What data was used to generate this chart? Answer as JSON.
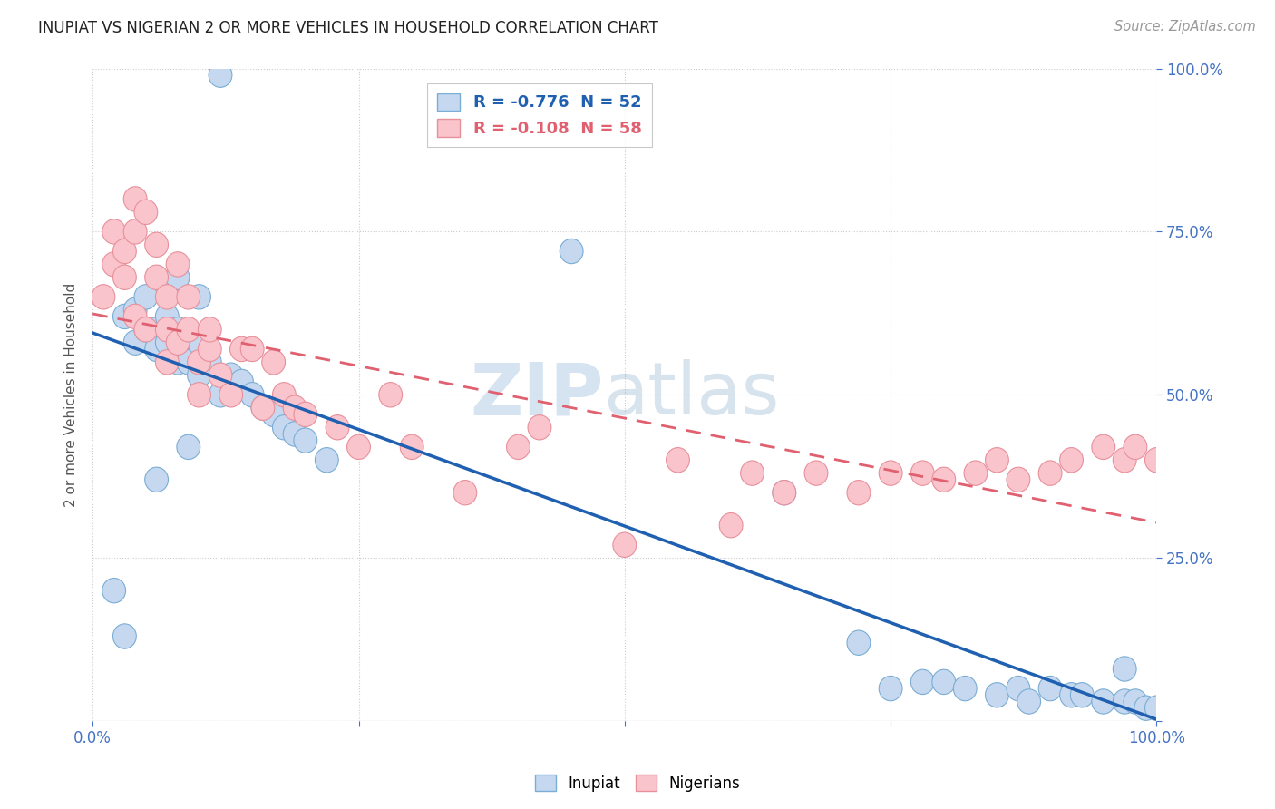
{
  "title": "INUPIAT VS NIGERIAN 2 OR MORE VEHICLES IN HOUSEHOLD CORRELATION CHART",
  "source": "Source: ZipAtlas.com",
  "ylabel": "2 or more Vehicles in Household",
  "watermark_zip": "ZIP",
  "watermark_atlas": "atlas",
  "legend_entry1": "R = -0.776  N = 52",
  "legend_entry2": "R = -0.108  N = 58",
  "inupiat_face_color": "#c5d8f0",
  "inupiat_edge_color": "#7aadd4",
  "nigerian_face_color": "#f9c4cc",
  "nigerian_edge_color": "#e8909a",
  "inupiat_line_color": "#2060b0",
  "nigerian_line_color": "#e06070",
  "xlim": [
    0,
    1
  ],
  "ylim": [
    0,
    1
  ],
  "xticks": [
    0.0,
    0.25,
    0.5,
    0.75,
    1.0
  ],
  "yticks": [
    0.0,
    0.25,
    0.5,
    0.75,
    1.0
  ],
  "xticklabels": [
    "0.0%",
    "",
    "",
    "",
    "100.0%"
  ],
  "yticklabels_right": [
    "",
    "25.0%",
    "50.0%",
    "75.0%",
    "100.0%"
  ],
  "inupiat_x": [
    0.02,
    0.03,
    0.04,
    0.04,
    0.05,
    0.05,
    0.06,
    0.06,
    0.07,
    0.07,
    0.08,
    0.08,
    0.08,
    0.09,
    0.09,
    0.1,
    0.1,
    0.1,
    0.11,
    0.12,
    0.12,
    0.13,
    0.14,
    0.15,
    0.16,
    0.17,
    0.18,
    0.19,
    0.2,
    0.22,
    0.03,
    0.06,
    0.09,
    0.45,
    0.65,
    0.72,
    0.75,
    0.78,
    0.8,
    0.82,
    0.85,
    0.87,
    0.88,
    0.9,
    0.92,
    0.93,
    0.95,
    0.97,
    0.97,
    0.98,
    0.99,
    1.0
  ],
  "inupiat_y": [
    0.2,
    0.62,
    0.63,
    0.58,
    0.65,
    0.6,
    0.6,
    0.57,
    0.62,
    0.58,
    0.6,
    0.55,
    0.68,
    0.57,
    0.55,
    0.58,
    0.53,
    0.65,
    0.55,
    0.5,
    0.99,
    0.53,
    0.52,
    0.5,
    0.48,
    0.47,
    0.45,
    0.44,
    0.43,
    0.4,
    0.13,
    0.37,
    0.42,
    0.72,
    0.35,
    0.12,
    0.05,
    0.06,
    0.06,
    0.05,
    0.04,
    0.05,
    0.03,
    0.05,
    0.04,
    0.04,
    0.03,
    0.03,
    0.08,
    0.03,
    0.02,
    0.02
  ],
  "nigerian_x": [
    0.01,
    0.02,
    0.02,
    0.03,
    0.03,
    0.04,
    0.04,
    0.04,
    0.05,
    0.05,
    0.06,
    0.06,
    0.07,
    0.07,
    0.07,
    0.08,
    0.08,
    0.09,
    0.09,
    0.1,
    0.1,
    0.11,
    0.11,
    0.12,
    0.13,
    0.14,
    0.15,
    0.16,
    0.17,
    0.18,
    0.19,
    0.2,
    0.23,
    0.25,
    0.28,
    0.3,
    0.35,
    0.4,
    0.42,
    0.5,
    0.55,
    0.6,
    0.62,
    0.65,
    0.68,
    0.72,
    0.75,
    0.78,
    0.8,
    0.83,
    0.85,
    0.87,
    0.9,
    0.92,
    0.95,
    0.97,
    0.98,
    1.0
  ],
  "nigerian_y": [
    0.65,
    0.75,
    0.7,
    0.72,
    0.68,
    0.75,
    0.8,
    0.62,
    0.78,
    0.6,
    0.73,
    0.68,
    0.6,
    0.65,
    0.55,
    0.7,
    0.58,
    0.6,
    0.65,
    0.55,
    0.5,
    0.57,
    0.6,
    0.53,
    0.5,
    0.57,
    0.57,
    0.48,
    0.55,
    0.5,
    0.48,
    0.47,
    0.45,
    0.42,
    0.5,
    0.42,
    0.35,
    0.42,
    0.45,
    0.27,
    0.4,
    0.3,
    0.38,
    0.35,
    0.38,
    0.35,
    0.38,
    0.38,
    0.37,
    0.38,
    0.4,
    0.37,
    0.38,
    0.4,
    0.42,
    0.4,
    0.42,
    0.4
  ]
}
